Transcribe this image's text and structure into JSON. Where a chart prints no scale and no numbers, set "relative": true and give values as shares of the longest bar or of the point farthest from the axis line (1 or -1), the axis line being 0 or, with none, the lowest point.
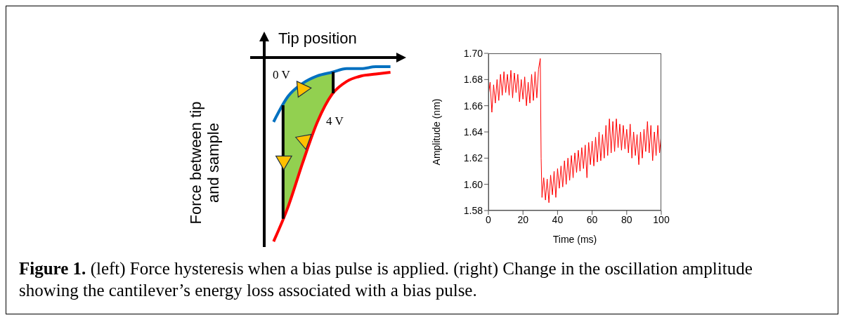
{
  "chart_data": [
    {
      "type": "line",
      "relative": true,
      "xlabel": "Tip position",
      "ylabel": "Force between tip and sample",
      "categories": [
        null,
        null,
        null,
        null,
        null,
        null,
        null,
        null,
        null
      ],
      "marker": "none",
      "legend": false,
      "grid": false,
      "annotations": [
        "0 V",
        "4 V"
      ],
      "series": [
        {
          "color": "#0070c0",
          "values": [
            -0.35,
            -0.21,
            -0.14,
            -0.1,
            -0.08,
            -0.06,
            -0.06,
            -0.05,
            -0.05
          ]
        },
        {
          "color": "#ff0000",
          "values": [
            -1,
            -0.81,
            -0.57,
            -0.35,
            -0.2,
            -0.13,
            -0.1,
            -0.09,
            -0.08
          ]
        }
      ]
    },
    {
      "type": "line",
      "xlabel": "Time (ms)",
      "ylabel": "Amplitude (nm)",
      "xlim": [
        0,
        100
      ],
      "xticks": [
        0,
        20,
        40,
        60,
        80,
        100
      ],
      "ylim": [
        1.58,
        1.7
      ],
      "yticks": [
        {
          "value": 1.58,
          "label": "1.58"
        },
        {
          "value": 1.6,
          "label": "1.60"
        },
        {
          "value": 1.62,
          "label": "1.62"
        },
        {
          "value": 1.64,
          "label": "1.64"
        },
        {
          "value": 1.66,
          "label": "1.66"
        },
        {
          "value": 1.68,
          "label": "1.68"
        },
        {
          "value": 1.7,
          "label": "1.70"
        }
      ],
      "marker": "none",
      "legend": false,
      "grid": false,
      "annotations": [
        "Figure 1.",
        "(left) Force hysteresis when a bias pulse is applied. (right) Change in the oscillation amplitude showing the cantilever’s energy loss associated with a bias pulse."
      ],
      "x": [
        0,
        1,
        2,
        3,
        4,
        5,
        6,
        7,
        8,
        9,
        10,
        11,
        12,
        13,
        14,
        15,
        16,
        17,
        18,
        19,
        20,
        21,
        22,
        23,
        24,
        25,
        26,
        27,
        28,
        29,
        30,
        30.5,
        31,
        32,
        33,
        34,
        35,
        36,
        37,
        38,
        39,
        40,
        41,
        42,
        43,
        44,
        45,
        46,
        47,
        48,
        49,
        50,
        51,
        52,
        53,
        54,
        55,
        56,
        57,
        58,
        59,
        60,
        61,
        62,
        63,
        64,
        65,
        66,
        67,
        68,
        69,
        70,
        71,
        72,
        73,
        74,
        75,
        76,
        77,
        78,
        79,
        80,
        81,
        82,
        83,
        84,
        85,
        86,
        87,
        88,
        89,
        90,
        91,
        92,
        93,
        94,
        95,
        96,
        97,
        98,
        99,
        100
      ],
      "series": [
        {
          "color": "#ff0000",
          "values": [
            1.668,
            1.678,
            1.655,
            1.676,
            1.662,
            1.68,
            1.664,
            1.684,
            1.668,
            1.686,
            1.67,
            1.684,
            1.668,
            1.687,
            1.666,
            1.685,
            1.67,
            1.684,
            1.663,
            1.68,
            1.665,
            1.682,
            1.66,
            1.678,
            1.662,
            1.684,
            1.664,
            1.686,
            1.666,
            1.688,
            1.696,
            1.62,
            1.59,
            1.605,
            1.588,
            1.604,
            1.586,
            1.607,
            1.592,
            1.61,
            1.59,
            1.612,
            1.597,
            1.614,
            1.598,
            1.618,
            1.6,
            1.62,
            1.603,
            1.622,
            1.605,
            1.624,
            1.609,
            1.626,
            1.61,
            1.628,
            1.612,
            1.63,
            1.605,
            1.632,
            1.615,
            1.633,
            1.614,
            1.636,
            1.617,
            1.64,
            1.618,
            1.638,
            1.62,
            1.645,
            1.622,
            1.65,
            1.624,
            1.648,
            1.625,
            1.65,
            1.628,
            1.646,
            1.626,
            1.645,
            1.627,
            1.642,
            1.624,
            1.646,
            1.62,
            1.64,
            1.622,
            1.638,
            1.615,
            1.64,
            1.62,
            1.642,
            1.625,
            1.648,
            1.624,
            1.645,
            1.618,
            1.64,
            1.622,
            1.645,
            1.624,
            1.638
          ]
        }
      ]
    }
  ]
}
